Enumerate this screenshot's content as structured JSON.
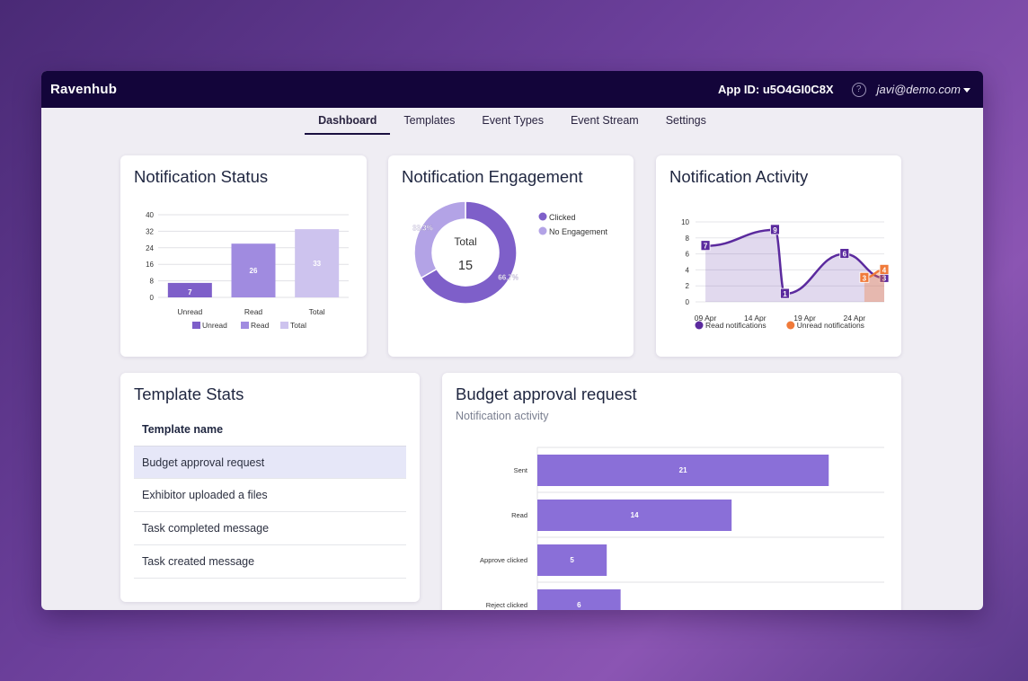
{
  "app": {
    "brand": "Ravenhub",
    "app_id": "App ID: u5O4GI0C8X",
    "help_glyph": "?",
    "user": "javi@demo.com"
  },
  "tabs": [
    "Dashboard",
    "Templates",
    "Event Types",
    "Event Stream",
    "Settings"
  ],
  "cards": {
    "status_title": "Notification Status",
    "engagement_title": "Notification Engagement",
    "activity_title": "Notification Activity",
    "template_title": "Template Stats",
    "budget_title": "Budget approval request",
    "budget_sub": "Notification activity"
  },
  "template_stats": {
    "column": "Template name",
    "rows": [
      "Budget approval request",
      "Exhibitor uploaded a files",
      "Task completed message",
      "Task created message"
    ]
  },
  "chart_data": [
    {
      "type": "bar",
      "categories": [
        "Unread",
        "Read",
        "Total"
      ],
      "values": [
        7,
        26,
        33
      ],
      "ylim": [
        0,
        40
      ],
      "yticks": [
        0,
        8,
        16,
        24,
        32,
        40
      ],
      "legend": [
        "Unread",
        "Read",
        "Total"
      ],
      "colors": [
        "#7e5fc9",
        "#a08be0",
        "#cdc3ee"
      ],
      "grid": true
    },
    {
      "type": "pie",
      "subtype": "doughnut",
      "center_label": "Total",
      "center_value": "15",
      "slices": [
        {
          "name": "Clicked",
          "percent": 66.7,
          "label": "66.7%",
          "color": "#7e5fc9"
        },
        {
          "name": "No Engagement",
          "percent": 33.3,
          "label": "33.3%",
          "color": "#b3a3e6"
        }
      ]
    },
    {
      "type": "line",
      "x_ticks": [
        "09 Apr",
        "14 Apr",
        "19 Apr",
        "24 Apr"
      ],
      "ylim": [
        0,
        10
      ],
      "yticks": [
        0,
        2,
        4,
        6,
        8,
        10
      ],
      "series": [
        {
          "name": "Read notifications",
          "color": "#5b2a9e",
          "points": [
            {
              "x": "09 Apr",
              "y": 7
            },
            {
              "x": "16 Apr",
              "y": 9
            },
            {
              "x": "17 Apr",
              "y": 1
            },
            {
              "x": "23 Apr",
              "y": 6
            },
            {
              "x": "27 Apr",
              "y": 3
            }
          ]
        },
        {
          "name": "Unread notifications",
          "color": "#f07a3a",
          "points": [
            {
              "x": "25 Apr",
              "y": 3
            },
            {
              "x": "27 Apr",
              "y": 4
            }
          ]
        }
      ],
      "legend": "bottom"
    },
    {
      "type": "bar",
      "orientation": "horizontal",
      "categories": [
        "Sent",
        "Read",
        "Approve clicked",
        "Reject clicked"
      ],
      "values": [
        21,
        14,
        5,
        6
      ],
      "color": "#8a6fd8",
      "grid": true
    }
  ]
}
